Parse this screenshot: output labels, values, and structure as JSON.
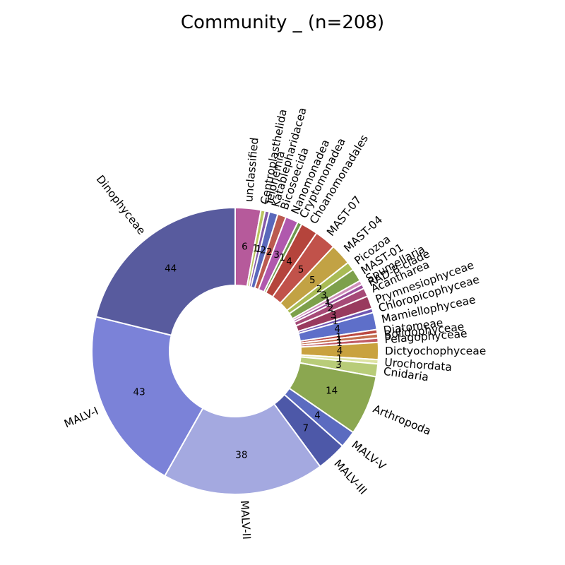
{
  "title": "Community _ (n=208)",
  "chart_data": {
    "type": "pie",
    "subtype": "donut",
    "title": "Community _ (n=208)",
    "total": 208,
    "start_angle_deg": 0,
    "direction": "clockwise",
    "legend_position": "none",
    "segments": [
      {
        "label": "unclassified",
        "value": 6,
        "color": "#b65a9b"
      },
      {
        "label": "Centroplasthelida",
        "value": 1,
        "color": "#b9c45e"
      },
      {
        "label": "Telonemia",
        "value": 1,
        "color": "#8459a8"
      },
      {
        "label": "Katablepharidacea",
        "value": 2,
        "color": "#5a68bb"
      },
      {
        "label": "Bicosoecida",
        "value": 2,
        "color": "#bb5a50"
      },
      {
        "label": "Nanomonadea",
        "value": 3,
        "color": "#b058ad"
      },
      {
        "label": "Cryptomonadea",
        "value": 1,
        "color": "#6e9a4e"
      },
      {
        "label": "Choanomonadales",
        "value": 4,
        "color": "#b5443c"
      },
      {
        "label": "MAST-07",
        "value": 5,
        "color": "#c1524a"
      },
      {
        "label": "MAST-04",
        "value": 5,
        "color": "#c2a244"
      },
      {
        "label": "Picozoa",
        "value": 2,
        "color": "#a9bb55"
      },
      {
        "label": "MAST-01",
        "value": 3,
        "color": "#7da04b"
      },
      {
        "label": "Spumellaria",
        "value": 1,
        "color": "#cf8fbb"
      },
      {
        "label": "RAD-B-clade",
        "value": 1,
        "color": "#9b4f9b"
      },
      {
        "label": "Acantharea",
        "value": 2,
        "color": "#a64a77"
      },
      {
        "label": "Prymnesiophyceae",
        "value": 3,
        "color": "#993a5e"
      },
      {
        "label": "Chloropicophyceae",
        "value": 1,
        "color": "#6f56b2"
      },
      {
        "label": "Mamiellophyceae",
        "value": 4,
        "color": "#5e6fc9"
      },
      {
        "label": "Diatomeae",
        "value": 1,
        "color": "#bb4a42"
      },
      {
        "label": "Bolidophyceae",
        "value": 1,
        "color": "#c4704e"
      },
      {
        "label": "Pelagophyceae",
        "value": 1,
        "color": "#c05a64"
      },
      {
        "label": "Dictyochophyceae",
        "value": 4,
        "color": "#c9a23f"
      },
      {
        "label": "Urochordata",
        "value": 1,
        "color": "#dde3a3"
      },
      {
        "label": "Cnidaria",
        "value": 3,
        "color": "#b8cc78"
      },
      {
        "label": "Arthropoda",
        "value": 14,
        "color": "#8ba750"
      },
      {
        "label": "MALV-V",
        "value": 4,
        "color": "#5b6bc0"
      },
      {
        "label": "MALV-III",
        "value": 7,
        "color": "#4d58a8"
      },
      {
        "label": "MALV-II",
        "value": 38,
        "color": "#a4a9e0"
      },
      {
        "label": "MALV-I",
        "value": 43,
        "color": "#7b82d8"
      },
      {
        "label": "Dinophyceae",
        "value": 44,
        "color": "#585b9e"
      }
    ]
  }
}
